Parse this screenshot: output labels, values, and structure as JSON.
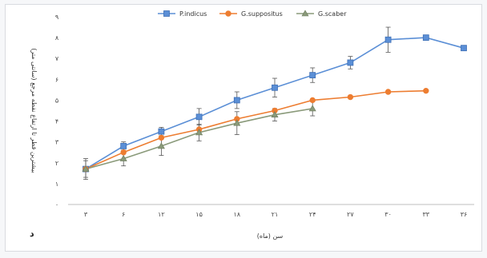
{
  "chart_data": {
    "type": "line",
    "panel_label": "د",
    "xlabel": "سن (ماه)",
    "ylabel": "بیشترین قطر تا ارتفاع نقطه مرجع (سانتی متر)",
    "x": [
      3,
      6,
      12,
      15,
      18,
      21,
      24,
      27,
      30,
      33,
      36
    ],
    "x_tick_labels": [
      "۳",
      "۶",
      "۱۲",
      "۱۵",
      "۱۸",
      "۲۱",
      "۲۴",
      "۲۷",
      "۳۰",
      "۳۳",
      "۳۶"
    ],
    "y_tick_labels": [
      "۰",
      "۱",
      "۲",
      "۳",
      "۴",
      "۵",
      "۶",
      "۷",
      "۸",
      "۹"
    ],
    "ylim": [
      0,
      9
    ],
    "grid": false,
    "legend_position": "top",
    "series": [
      {
        "name": "P.indicus",
        "color": "#5b8fd6",
        "marker": "square",
        "values": [
          1.7,
          2.8,
          3.5,
          4.2,
          5.0,
          5.6,
          6.2,
          6.8,
          7.9,
          8.0,
          7.5
        ],
        "errors": [
          0.5,
          0.2,
          0.2,
          0.4,
          0.4,
          0.45,
          0.35,
          0.3,
          0.6,
          null,
          null
        ]
      },
      {
        "name": "G.suppositus",
        "color": "#ed7d31",
        "marker": "circle",
        "values": [
          1.7,
          2.5,
          3.2,
          3.6,
          4.1,
          4.5,
          5.0,
          5.15,
          5.4,
          5.45,
          null
        ],
        "errors": [
          null,
          null,
          null,
          null,
          null,
          null,
          null,
          null,
          null,
          null,
          null
        ]
      },
      {
        "name": "G.scaber",
        "color": "#8a9a7a",
        "marker": "triangle",
        "values": [
          1.7,
          2.2,
          2.8,
          3.45,
          3.9,
          4.3,
          4.6,
          null,
          null,
          null,
          null
        ],
        "errors": [
          0.4,
          0.35,
          0.45,
          0.4,
          0.55,
          0.3,
          0.35,
          null,
          null,
          null,
          null
        ]
      }
    ]
  }
}
